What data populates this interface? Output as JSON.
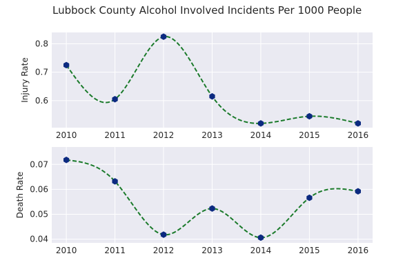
{
  "title": "Lubbock County Alcohol Involved Incidents Per 1000 People",
  "colors": {
    "axes_bg": "#eaeaf2",
    "grid": "#ffffff",
    "line": "#1a7a2a",
    "marker": "#0c2a80"
  },
  "chart_data": [
    {
      "type": "line",
      "ylabel": "Injury Rate",
      "x": [
        2010,
        2011,
        2012,
        2013,
        2014,
        2015,
        2016
      ],
      "y": [
        0.725,
        0.605,
        0.825,
        0.615,
        0.52,
        0.545,
        0.52
      ],
      "ylim": [
        0.505,
        0.84
      ],
      "yticks": [
        0.6,
        0.7,
        0.8
      ],
      "ytick_labels": [
        "0.6",
        "0.7",
        "0.8"
      ],
      "xticks": [
        2010,
        2011,
        2012,
        2013,
        2014,
        2015,
        2016
      ],
      "xtick_labels": [
        "2010",
        "2011",
        "2012",
        "2013",
        "2014",
        "2015",
        "2016"
      ],
      "line_style": "dashed smooth spline",
      "marker": "hexagon",
      "grid": true
    },
    {
      "type": "line",
      "ylabel": "Death Rate",
      "x": [
        2010,
        2011,
        2012,
        2013,
        2014,
        2015,
        2016
      ],
      "y": [
        0.0718,
        0.0632,
        0.0418,
        0.0523,
        0.0406,
        0.0566,
        0.0592
      ],
      "ylim": [
        0.0385,
        0.077
      ],
      "yticks": [
        0.04,
        0.05,
        0.06,
        0.07
      ],
      "ytick_labels": [
        "0.04",
        "0.05",
        "0.06",
        "0.07"
      ],
      "xticks": [
        2010,
        2011,
        2012,
        2013,
        2014,
        2015,
        2016
      ],
      "xtick_labels": [
        "2010",
        "2011",
        "2012",
        "2013",
        "2014",
        "2015",
        "2016"
      ],
      "line_style": "dashed smooth spline",
      "marker": "hexagon",
      "grid": true
    }
  ]
}
